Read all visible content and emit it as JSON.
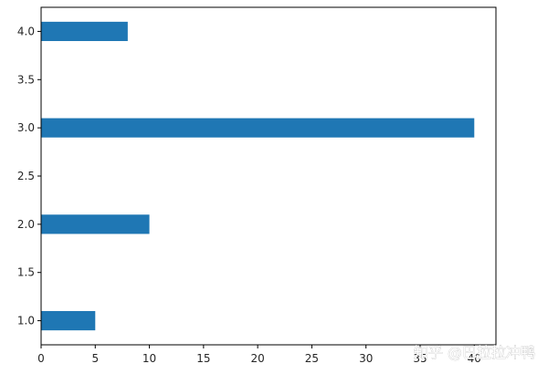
{
  "chart_data": {
    "type": "bar",
    "orientation": "horizontal",
    "categories": [
      1.0,
      2.0,
      3.0,
      4.0
    ],
    "values": [
      5,
      10,
      40,
      8
    ],
    "bar_color": "#1f77b4",
    "title": "",
    "xlabel": "",
    "ylabel": "",
    "xlim": [
      0,
      42
    ],
    "ylim": [
      0.75,
      4.25
    ],
    "xticks": [
      0,
      5,
      10,
      15,
      20,
      25,
      30,
      35,
      40
    ],
    "xtick_labels": [
      "0",
      "5",
      "10",
      "15",
      "20",
      "25",
      "30",
      "35",
      "40"
    ],
    "yticks": [
      1.0,
      1.5,
      2.0,
      2.5,
      3.0,
      3.5,
      4.0
    ],
    "ytick_labels": [
      "1.0",
      "1.5",
      "2.0",
      "2.5",
      "3.0",
      "3.5",
      "4.0"
    ],
    "bar_height": 0.2,
    "grid": false,
    "legend": "none"
  },
  "watermark": {
    "text": "知乎 @巴拉拉冲鸭"
  }
}
